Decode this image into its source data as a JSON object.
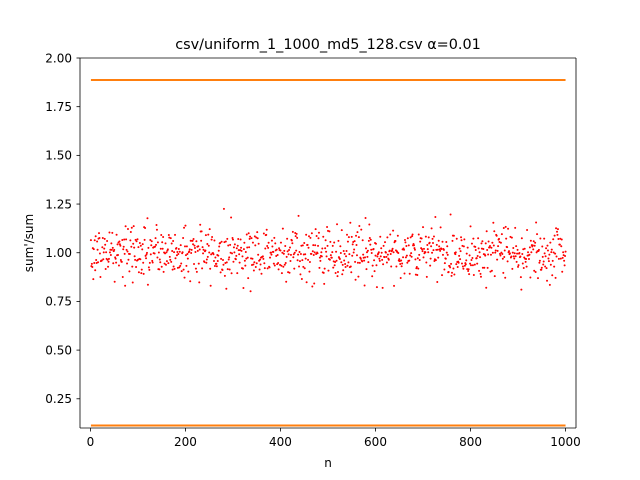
{
  "chart_data": {
    "type": "scatter",
    "title": "csv/uniform_1_1000_md5_128.csv α=0.01",
    "xlabel": "n",
    "ylabel": "sum'/sum",
    "xlim": [
      -22,
      1022
    ],
    "ylim": [
      0.1,
      2.0
    ],
    "x_ticks": [
      0,
      200,
      400,
      600,
      800,
      1000
    ],
    "y_ticks": [
      0.25,
      0.5,
      0.75,
      1.0,
      1.25,
      1.5,
      1.75,
      2.0
    ],
    "x_tick_labels": [
      "0",
      "200",
      "400",
      "600",
      "800",
      "1000"
    ],
    "y_tick_labels": [
      "0.25",
      "0.50",
      "0.75",
      "1.00",
      "1.25",
      "1.50",
      "1.75",
      "2.00"
    ],
    "grid": false,
    "series": [
      {
        "kind": "points",
        "color": "#ff0000",
        "n_points": 1000,
        "x_range": [
          1,
          1000
        ],
        "center": 1.0,
        "typical_spread": 0.07,
        "min": 0.77,
        "max": 1.35
      },
      {
        "kind": "hline",
        "color": "#ff7f0e",
        "y": 1.887,
        "x_range": [
          1,
          1000
        ]
      },
      {
        "kind": "hline",
        "color": "#ff7f0e",
        "y": 0.113,
        "x_range": [
          1,
          1000
        ]
      }
    ]
  }
}
